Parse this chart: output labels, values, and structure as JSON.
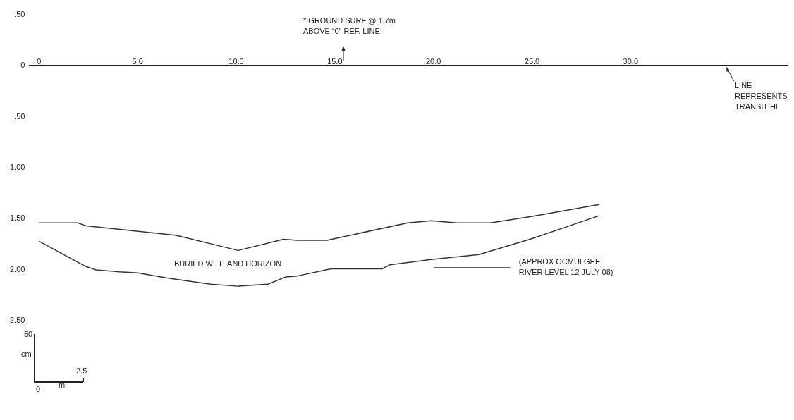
{
  "chart_data": {
    "type": "line",
    "series": [
      {
        "color": "#333333",
        "x": [
          0,
          1.95,
          2.4,
          6.9,
          10.1,
          12.4,
          13.1,
          14.6,
          18.7,
          19.9,
          21.2,
          22.9,
          24.9,
          28.4
        ],
        "values": [
          1.54,
          1.54,
          1.57,
          1.66,
          1.81,
          1.7,
          1.71,
          1.71,
          1.54,
          1.52,
          1.54,
          1.54,
          1.48,
          1.36
        ]
      },
      {
        "color": "#333333",
        "x": [
          0,
          0.1,
          2.4,
          2.9,
          4.1,
          5.0,
          6.5,
          8.7,
          10.1,
          11.6,
          12.5,
          13.1,
          14.8,
          17.4,
          17.8,
          19.8,
          22.3,
          24.9,
          28.4
        ],
        "values": [
          1.72,
          1.73,
          1.97,
          2.0,
          2.02,
          2.03,
          2.08,
          2.14,
          2.16,
          2.14,
          2.07,
          2.06,
          1.99,
          1.99,
          1.95,
          1.9,
          1.85,
          1.7,
          1.47
        ]
      },
      {
        "color": "#333333",
        "x": [
          20.0,
          23.9
        ],
        "values": [
          1.98,
          1.98
        ]
      }
    ],
    "xlim": [
      -0.5,
      38
    ],
    "xticks": [
      0,
      {
        "value": 5,
        "label": "5.0"
      },
      {
        "value": 10,
        "label": "10.0"
      },
      {
        "value": 15,
        "label": "15.0"
      },
      {
        "value": 20,
        "label": "20.0"
      },
      {
        "value": 25,
        "label": "25.0"
      },
      {
        "value": 30,
        "label": "30.0"
      }
    ],
    "ylim": [
      2.5,
      -0.5
    ],
    "yticks": [
      {
        "value": -0.5,
        "label": ".50"
      },
      0,
      {
        "value": 0.5,
        "label": ".50"
      },
      {
        "value": 1,
        "label": "1.00"
      },
      {
        "value": 1.5,
        "label": "1.50"
      },
      {
        "value": 2,
        "label": "2.00"
      },
      {
        "value": 2.5,
        "label": "2.50"
      }
    ],
    "grid": false,
    "legend": false,
    "marker": "none",
    "line_style": "solid",
    "annotations": [
      "* GROUND SURF @ 1.7m\nABOVE “0” REF. LINE",
      "LINE\nREPRESENTS\nTRANSIT HI",
      "BURIED WETLAND HORIZON",
      {
        "text": "(APPROX OCMULGEE\nRIVER LEVEL 12 JULY 08)",
        "x": 23.9,
        "y": 1.98
      },
      "50",
      "cm",
      "2.5",
      "m",
      "0"
    ]
  }
}
